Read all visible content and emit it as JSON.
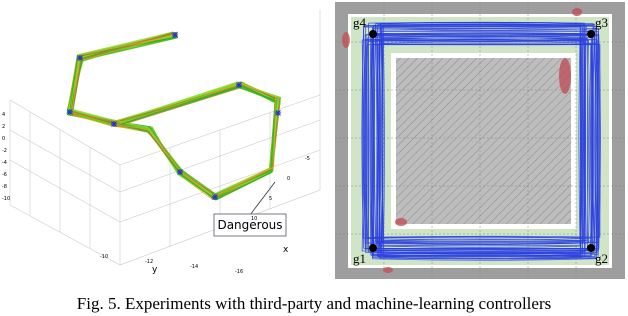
{
  "figure": {
    "left": {
      "annotation": "Dangerous",
      "axis_labels": {
        "x": "x",
        "y": "y"
      },
      "z_ticks": [
        "4",
        "2",
        "0",
        "-2",
        "-4",
        "-6",
        "-8",
        "-10"
      ],
      "y_ticks": [
        "-10",
        "-12",
        "-14",
        "-16"
      ],
      "x_ticks": [
        "-5",
        "0",
        "5",
        "10"
      ]
    },
    "right": {
      "goals": [
        "g4",
        "g3",
        "g1",
        "g2"
      ]
    },
    "caption": "Fig. 5.  Experiments with third-party and machine-learning controllers"
  }
}
